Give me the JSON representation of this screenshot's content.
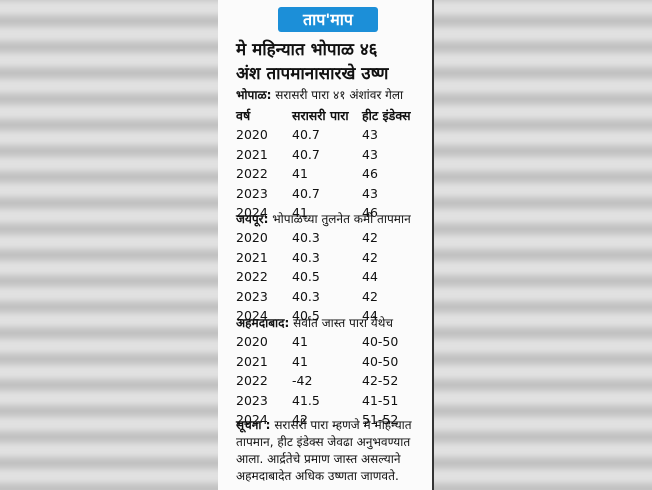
{
  "badge": "ताप'माप",
  "headline": {
    "line1": "मे महिन्यात भोपाळ ४६",
    "line2": "अंश तापमानासारखे उष्ण"
  },
  "header": [
    "वर्ष",
    "सरासरी पारा",
    "हीट इंडेक्स"
  ],
  "sections": [
    {
      "label": "भोपाळ:",
      "text": "सरासरी पारा ४१ अंशांवर गेला",
      "rows": [
        [
          "2020",
          "40.7",
          "43"
        ],
        [
          "2021",
          "40.7",
          "43"
        ],
        [
          "2022",
          "41",
          "46"
        ],
        [
          "2023",
          "40.7",
          "43"
        ],
        [
          "2024",
          "41",
          "46"
        ]
      ]
    },
    {
      "label": "जयपूर:",
      "text": "भोपाळच्या तुलनेत कमी तापमान",
      "rows": [
        [
          "2020",
          "40.3",
          "42"
        ],
        [
          "2021",
          "40.3",
          "42"
        ],
        [
          "2022",
          "40.5",
          "44"
        ],
        [
          "2023",
          "40.3",
          "42"
        ],
        [
          "2024",
          "40.5",
          "44"
        ]
      ]
    },
    {
      "label": "अहमदाबाद:",
      "text": "सर्वात जास्त पारा येथेच",
      "rows": [
        [
          "2020",
          "41",
          "40-50"
        ],
        [
          "2021",
          "41",
          "40-50"
        ],
        [
          "2022",
          "-42",
          "42-52"
        ],
        [
          "2023",
          "41.5",
          "41-51"
        ],
        [
          "2024",
          "42",
          "51-52"
        ]
      ]
    }
  ],
  "note": {
    "label": "सूचना :",
    "text": "सरासरी पारा म्हणजे मे महिन्यात तापमान, हीट इंडेक्स जेवढा अनुभवण्यात आला. आर्द्रतेचे प्रमाण जास्त असल्याने अहमदाबादेत अधिक उष्णता जाणवते."
  }
}
